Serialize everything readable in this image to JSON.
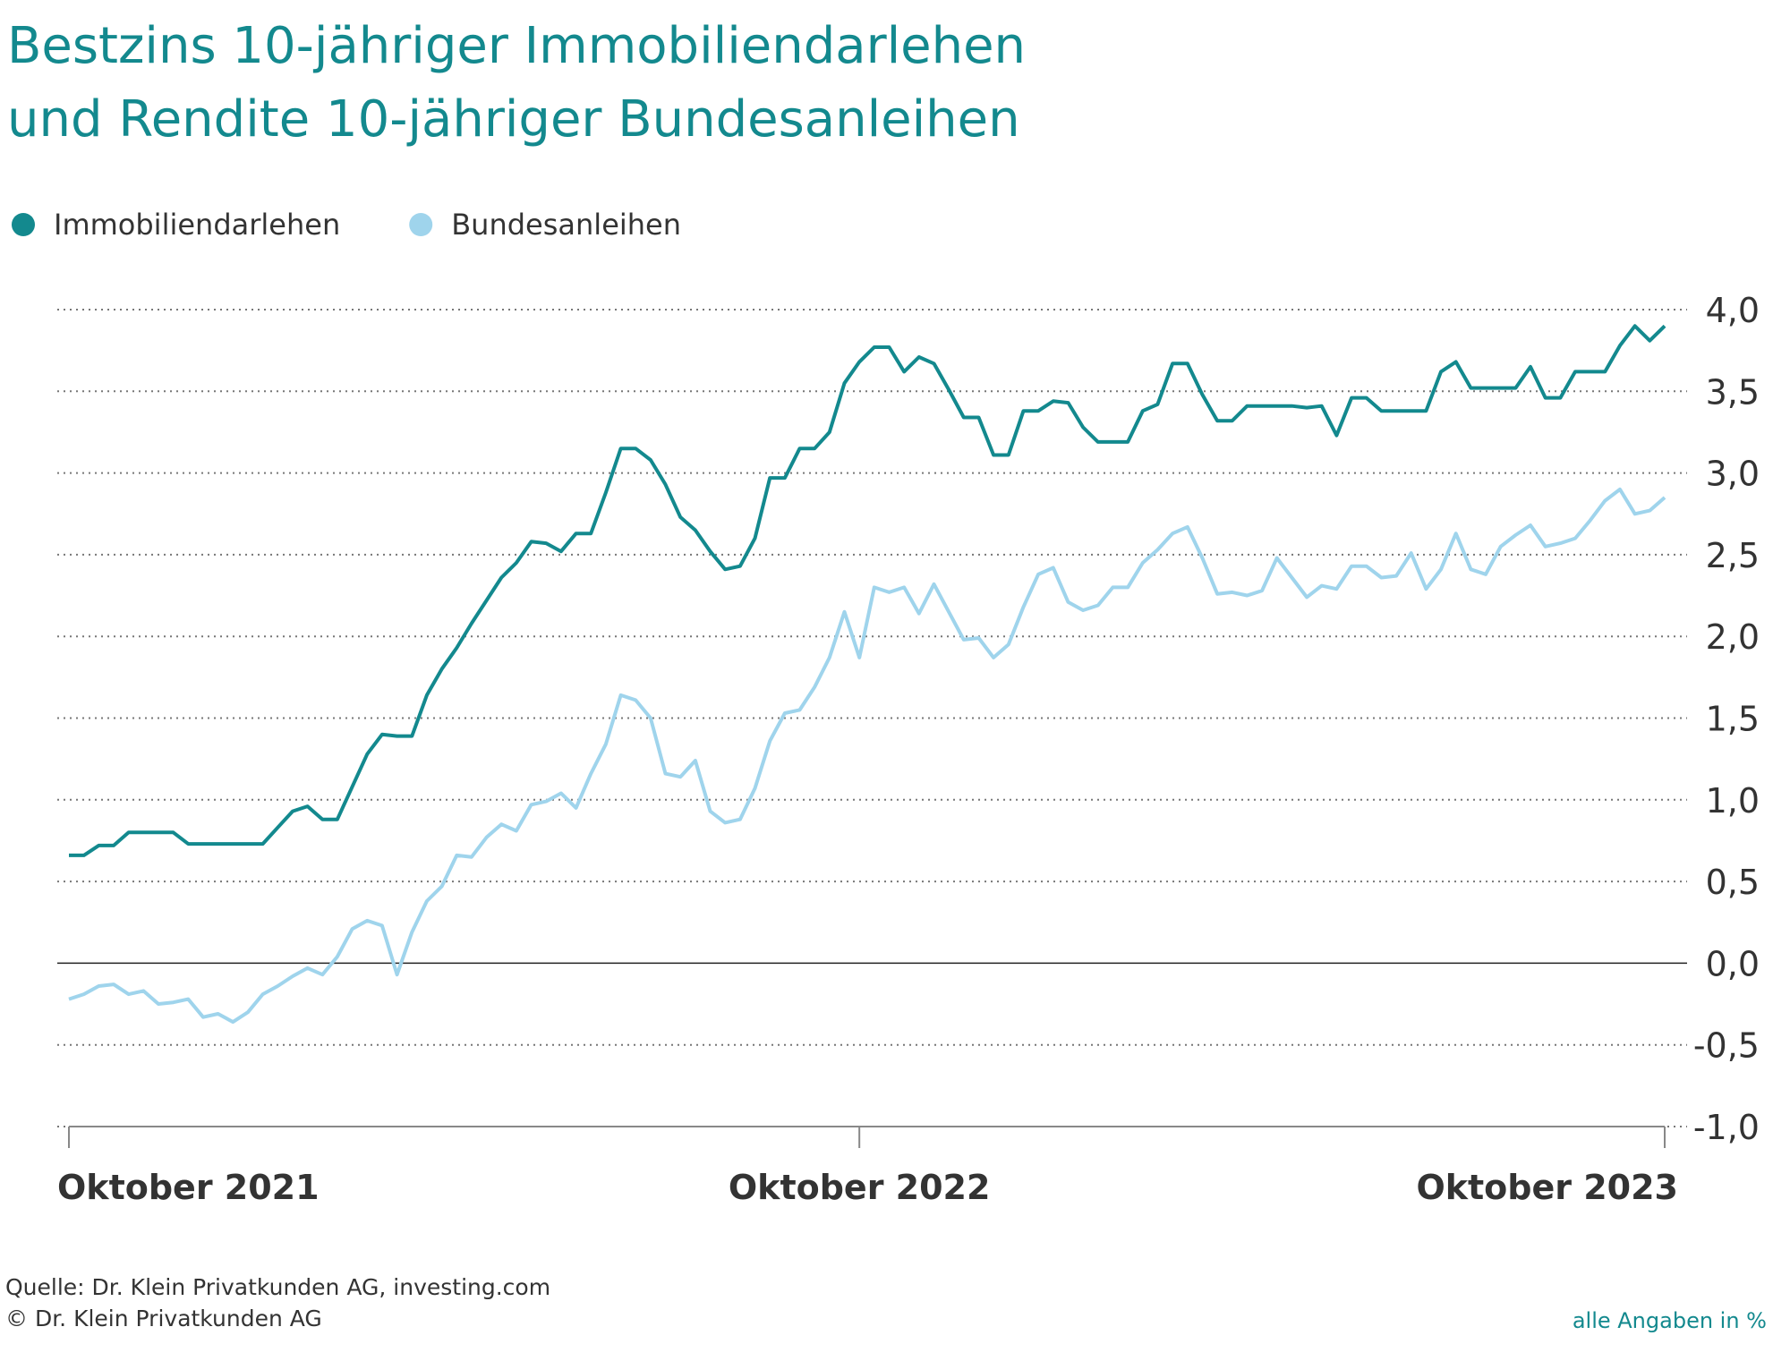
{
  "chart_data": {
    "type": "line",
    "title": "Bestzins 10-jähriger Immobiliendarlehen und Rendite 10-jähriger Bundesanleihen",
    "categories": [
      "Oktober 2021",
      null,
      null,
      null,
      null,
      null,
      null,
      null,
      null,
      null,
      null,
      null,
      null,
      null,
      null,
      null,
      null,
      null,
      null,
      null,
      null,
      null,
      null,
      null,
      null,
      null,
      null,
      null,
      null,
      null,
      null,
      null,
      null,
      null,
      null,
      null,
      null,
      null,
      null,
      null,
      null,
      null,
      null,
      null,
      null,
      null,
      null,
      null,
      null,
      null,
      null,
      null,
      null,
      "Oktober 2022",
      null,
      null,
      null,
      null,
      null,
      null,
      null,
      null,
      null,
      null,
      null,
      null,
      null,
      null,
      null,
      null,
      null,
      null,
      null,
      null,
      null,
      null,
      null,
      null,
      null,
      null,
      null,
      null,
      null,
      null,
      null,
      null,
      null,
      null,
      null,
      null,
      null,
      null,
      null,
      null,
      null,
      null,
      null,
      null,
      null,
      null,
      null,
      null,
      null,
      null,
      null,
      null,
      null,
      "Oktober 2023"
    ],
    "series": [
      {
        "name": "Immobiliendarlehen",
        "color": "#13898e",
        "values": [
          0.66,
          0.66,
          0.72,
          0.72,
          0.8,
          0.8,
          0.8,
          0.8,
          0.73,
          0.73,
          0.73,
          0.73,
          0.73,
          0.73,
          0.83,
          0.93,
          0.96,
          0.88,
          0.88,
          1.08,
          1.28,
          1.4,
          1.39,
          1.39,
          1.64,
          1.8,
          1.93,
          2.08,
          2.22,
          2.36,
          2.45,
          2.58,
          2.57,
          2.52,
          2.63,
          2.63,
          2.88,
          3.15,
          3.15,
          3.08,
          2.93,
          2.73,
          2.65,
          2.52,
          2.41,
          2.43,
          2.6,
          2.97,
          2.97,
          3.15,
          3.15,
          3.25,
          3.55,
          3.68,
          3.77,
          3.77,
          3.62,
          3.71,
          3.67,
          3.51,
          3.34,
          3.34,
          3.11,
          3.11,
          3.38,
          3.38,
          3.44,
          3.43,
          3.28,
          3.19,
          3.19,
          3.19,
          3.38,
          3.42,
          3.67,
          3.67,
          3.48,
          3.32,
          3.32,
          3.41,
          3.41,
          3.41,
          3.41,
          3.4,
          3.41,
          3.23,
          3.46,
          3.46,
          3.38,
          3.38,
          3.38,
          3.38,
          3.62,
          3.68,
          3.52,
          3.52,
          3.52,
          3.52,
          3.65,
          3.46,
          3.46,
          3.62,
          3.62,
          3.62,
          3.78,
          3.9,
          3.81,
          3.9
        ]
      },
      {
        "name": "Bundesanleihen",
        "color": "#9fd4ec",
        "values": [
          -0.22,
          -0.19,
          -0.14,
          -0.13,
          -0.19,
          -0.17,
          -0.25,
          -0.24,
          -0.22,
          -0.33,
          -0.31,
          -0.36,
          -0.3,
          -0.19,
          -0.14,
          -0.08,
          -0.03,
          -0.07,
          0.04,
          0.21,
          0.26,
          0.23,
          -0.07,
          0.19,
          0.38,
          0.47,
          0.66,
          0.65,
          0.77,
          0.85,
          0.81,
          0.97,
          0.99,
          1.04,
          0.95,
          1.16,
          1.34,
          1.64,
          1.61,
          1.5,
          1.16,
          1.14,
          1.24,
          0.93,
          0.86,
          0.88,
          1.07,
          1.36,
          1.53,
          1.55,
          1.69,
          1.87,
          2.15,
          1.87,
          2.3,
          2.27,
          2.3,
          2.14,
          2.32,
          2.15,
          1.98,
          1.99,
          1.87,
          1.95,
          2.18,
          2.38,
          2.42,
          2.21,
          2.16,
          2.19,
          2.3,
          2.3,
          2.45,
          2.53,
          2.63,
          2.67,
          2.48,
          2.26,
          2.27,
          2.25,
          2.28,
          2.48,
          2.36,
          2.24,
          2.31,
          2.29,
          2.43,
          2.43,
          2.36,
          2.37,
          2.51,
          2.29,
          2.41,
          2.63,
          2.41,
          2.38,
          2.55,
          2.62,
          2.68,
          2.55,
          2.57,
          2.6,
          2.71,
          2.83,
          2.9,
          2.75,
          2.77,
          2.85
        ]
      }
    ],
    "ylim": [
      -1,
      4
    ],
    "yticks": [
      {
        "value": 4,
        "label": "4,0"
      },
      {
        "value": 3.5,
        "label": "3,5"
      },
      {
        "value": 3,
        "label": "3,0"
      },
      {
        "value": 2.5,
        "label": "2,5"
      },
      {
        "value": 2,
        "label": "2,0"
      },
      {
        "value": 1.5,
        "label": "1,5"
      },
      {
        "value": 1,
        "label": "1,0"
      },
      {
        "value": 0.5,
        "label": "0,5"
      },
      {
        "value": 0,
        "label": "0,0"
      },
      {
        "value": -0.5,
        "label": "-0,5"
      },
      {
        "value": -1,
        "label": "-1,0"
      }
    ],
    "grid": true,
    "source": "Quelle: Dr. Klein Privatkunden AG, investing.com",
    "copyright": "© Dr. Klein Privatkunden AG",
    "units_note": "alle Angaben in %"
  }
}
